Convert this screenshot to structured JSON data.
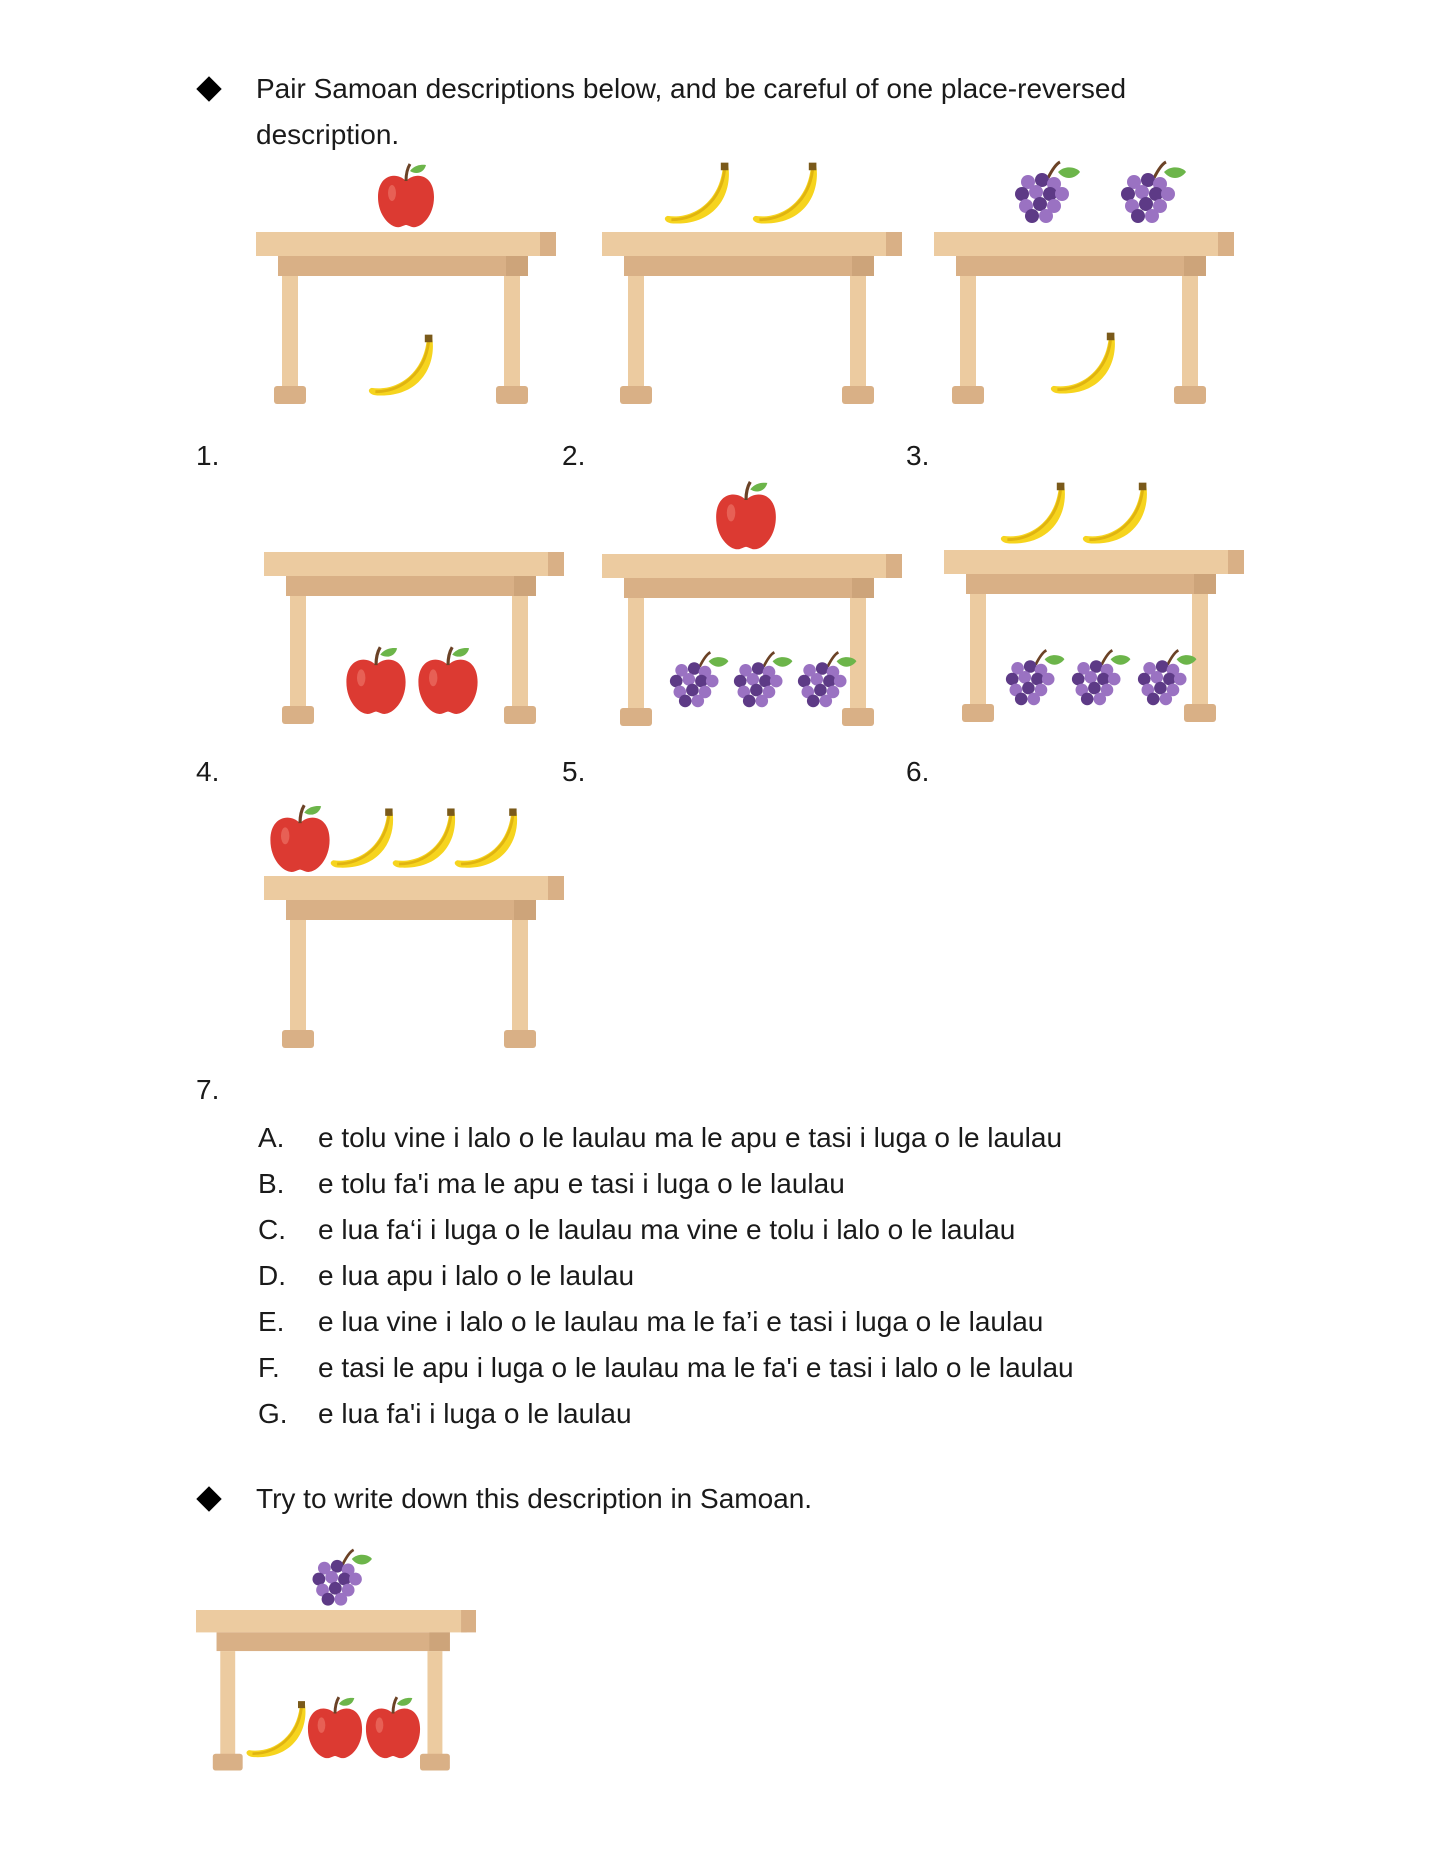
{
  "instructions": {
    "pair_line1": "Pair Samoan descriptions below, and be careful of one place-reversed",
    "pair_line2": "description.",
    "write": "Try to write down this description in Samoan."
  },
  "pictures": [
    {
      "number": "1.",
      "on_table": "apple",
      "under_table": "banana"
    },
    {
      "number": "2.",
      "on_table": "2 bananas",
      "under_table": ""
    },
    {
      "number": "3.",
      "on_table": "2 grapes",
      "under_table": "banana"
    },
    {
      "number": "4.",
      "on_table": "",
      "under_table": "2 apples"
    },
    {
      "number": "5.",
      "on_table": "apple",
      "under_table": "3 grapes"
    },
    {
      "number": "6.",
      "on_table": "2 bananas",
      "under_table": "3 grapes"
    },
    {
      "number": "7.",
      "on_table": "apple, 3 bananas",
      "under_table": ""
    }
  ],
  "options": [
    {
      "letter": "A.",
      "text": "e tolu vine i lalo o le laulau ma le apu e tasi i luga o le laulau"
    },
    {
      "letter": "B.",
      "text": "e tolu fa'i ma le apu e tasi i luga o le laulau"
    },
    {
      "letter": "C.",
      "text": "e lua fa‘i i luga o le laulau ma vine e tolu i lalo o le laulau"
    },
    {
      "letter": "D.",
      "text": "e lua apu i lalo o le laulau"
    },
    {
      "letter": "E.",
      "text": "e lua vine i lalo o le laulau ma le fa’i e tasi i luga o le laulau"
    },
    {
      "letter": "F.",
      "text": "e tasi le apu i luga o le laulau ma le fa'i e tasi i lalo o le laulau"
    },
    {
      "letter": "G.",
      "text": "e lua fa'i i luga o le laulau"
    }
  ],
  "colors": {
    "table_top": "#eccba0",
    "table_apron": "#d9b086",
    "table_shadow": "#cda47a",
    "apple": "#dc3a32",
    "banana": "#f6d41e",
    "grape_dark": "#5d3a86",
    "grape_light": "#9a72c2",
    "leaf": "#6cb54a"
  },
  "icons": [
    "diamond-bullet-icon",
    "table-icon",
    "apple-icon",
    "banana-icon",
    "grapes-icon"
  ]
}
